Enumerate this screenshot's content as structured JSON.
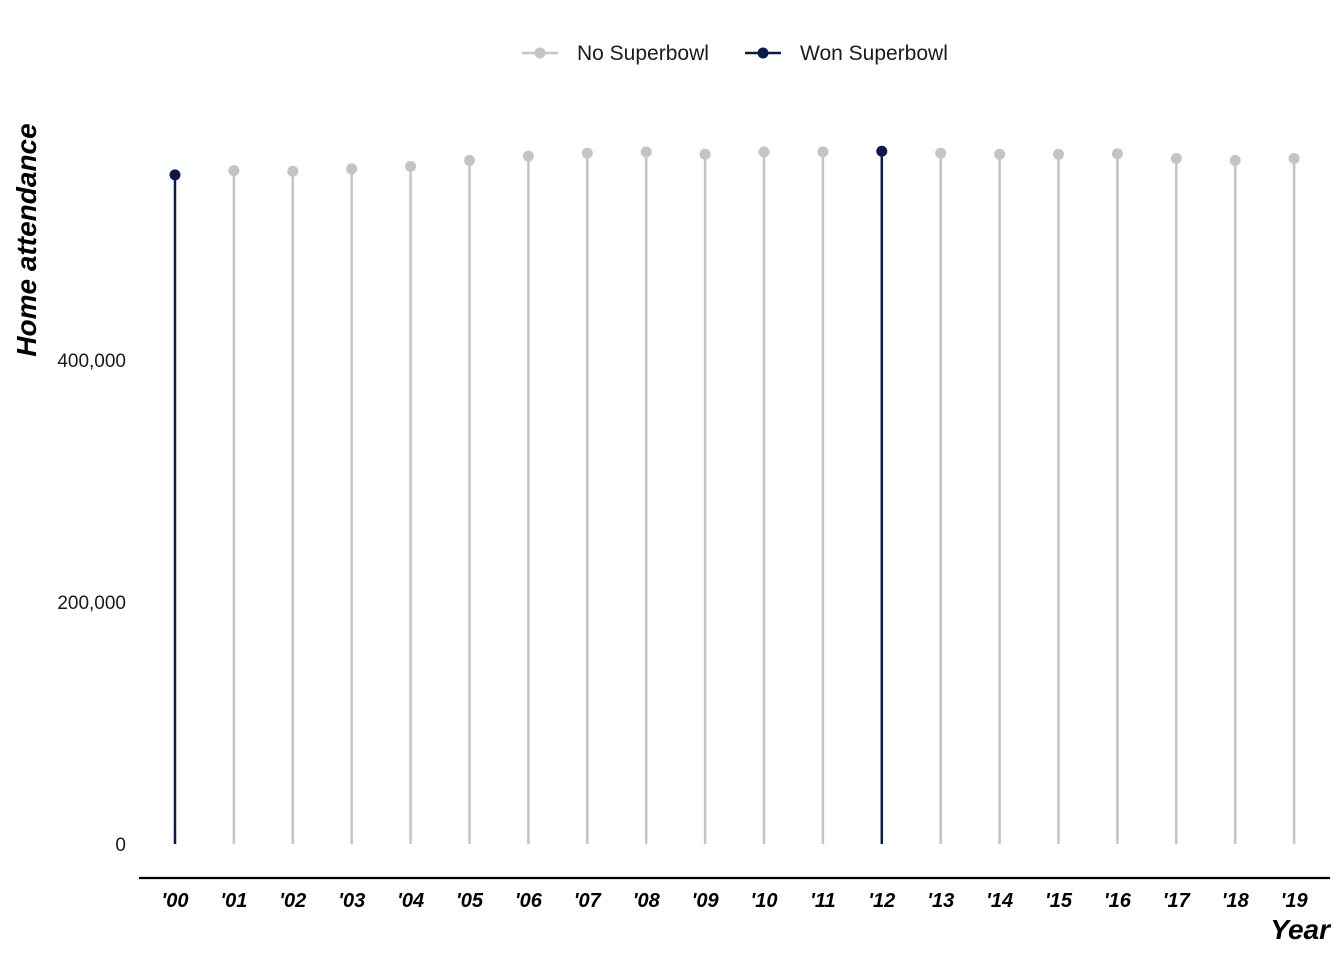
{
  "chart_data": {
    "type": "lollipop",
    "title": "",
    "xlabel": "Year",
    "ylabel": "Home attendance",
    "ylim": [
      0,
      572000
    ],
    "yticks": [
      {
        "value": 0,
        "label": "0"
      },
      {
        "value": 200000,
        "label": "200,000"
      },
      {
        "value": 400000,
        "label": "400,000"
      }
    ],
    "categories": [
      "'00",
      "'01",
      "'02",
      "'03",
      "'04",
      "'05",
      "'06",
      "'07",
      "'08",
      "'09",
      "'10",
      "'11",
      "'12",
      "'13",
      "'14",
      "'15",
      "'16",
      "'17",
      "'18",
      "'19"
    ],
    "values": [
      553000,
      556500,
      556000,
      558000,
      560000,
      565000,
      568500,
      571000,
      572000,
      570000,
      572000,
      572000,
      572500,
      571000,
      570000,
      570000,
      570500,
      566500,
      565000,
      566500
    ],
    "won_superbowl": [
      true,
      false,
      false,
      false,
      false,
      false,
      false,
      false,
      false,
      false,
      false,
      false,
      true,
      false,
      false,
      false,
      false,
      false,
      false,
      false
    ],
    "legend": [
      {
        "key": "no",
        "label": "No Superbowl",
        "color": "#c4c4c4"
      },
      {
        "key": "won",
        "label": "Won Superbowl",
        "color": "#0b1a4a"
      }
    ],
    "legend_position": "top-center",
    "grid": false
  }
}
